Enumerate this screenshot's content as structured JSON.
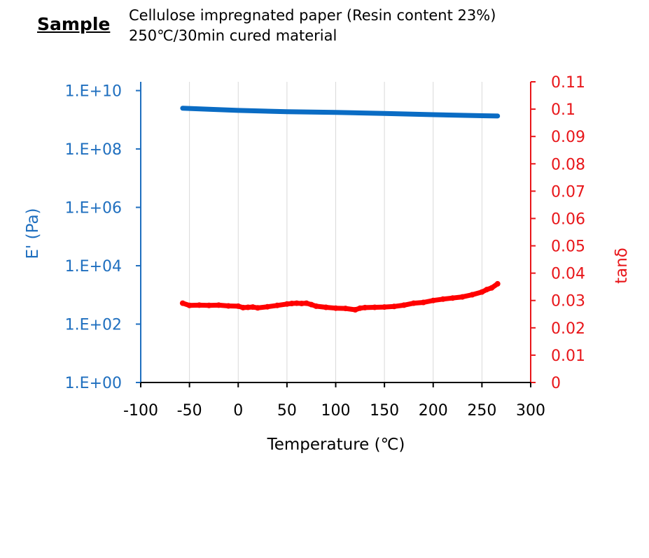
{
  "header": {
    "label": "Sample",
    "line1": "Cellulose impregnated paper (Resin content 23%)",
    "line2": "250℃/30min cured material"
  },
  "chart_data": {
    "type": "line",
    "xlabel": "Temperature (℃)",
    "ylabel_left": "E' (Pa)",
    "ylabel_right": "tanδ",
    "xlim": [
      -100,
      300
    ],
    "x_ticks": [
      "-100",
      "-50",
      "0",
      "50",
      "100",
      "150",
      "200",
      "250",
      "300"
    ],
    "y_left_scale": "log",
    "y_left_lim": [
      1,
      20000000000
    ],
    "y_left_ticks": [
      "1.E+00",
      "1.E+02",
      "1.E+04",
      "1.E+06",
      "1.E+08",
      "1.E+10"
    ],
    "y_right_lim": [
      0,
      0.11
    ],
    "y_right_ticks": [
      "0",
      "0.01",
      "0.02",
      "0.03",
      "0.04",
      "0.05",
      "0.06",
      "0.07",
      "0.08",
      "0.09",
      "0.1",
      "0.11"
    ],
    "grid": "vertical",
    "colors": {
      "left_axis": "#1f6fbf",
      "right_axis": "#e8161a",
      "storage_modulus": "#0a6cc4",
      "tan_delta": "#ff0000"
    },
    "series": [
      {
        "axis": "left",
        "x": [
          -57,
          -30,
          0,
          50,
          100,
          150,
          200,
          250,
          266
        ],
        "values": [
          2500000000,
          2300000000,
          2100000000,
          1900000000,
          1800000000,
          1650000000,
          1500000000,
          1380000000,
          1350000000
        ]
      },
      {
        "axis": "right",
        "x": [
          -57,
          -50,
          -40,
          -30,
          -20,
          -10,
          0,
          5,
          10,
          15,
          20,
          30,
          40,
          50,
          55,
          60,
          65,
          70,
          75,
          80,
          90,
          100,
          110,
          120,
          125,
          130,
          140,
          150,
          160,
          170,
          180,
          190,
          200,
          210,
          220,
          230,
          240,
          250,
          255,
          260,
          266
        ],
        "values": [
          0.029,
          0.0282,
          0.0283,
          0.0282,
          0.0283,
          0.028,
          0.0279,
          0.0274,
          0.0275,
          0.0276,
          0.0273,
          0.0277,
          0.0282,
          0.0287,
          0.0289,
          0.029,
          0.0289,
          0.029,
          0.0285,
          0.0279,
          0.0275,
          0.0272,
          0.0271,
          0.0266,
          0.0272,
          0.0274,
          0.0275,
          0.0276,
          0.0278,
          0.0283,
          0.029,
          0.0293,
          0.03,
          0.0305,
          0.0309,
          0.0313,
          0.0321,
          0.0331,
          0.034,
          0.0346,
          0.0361
        ]
      }
    ]
  }
}
